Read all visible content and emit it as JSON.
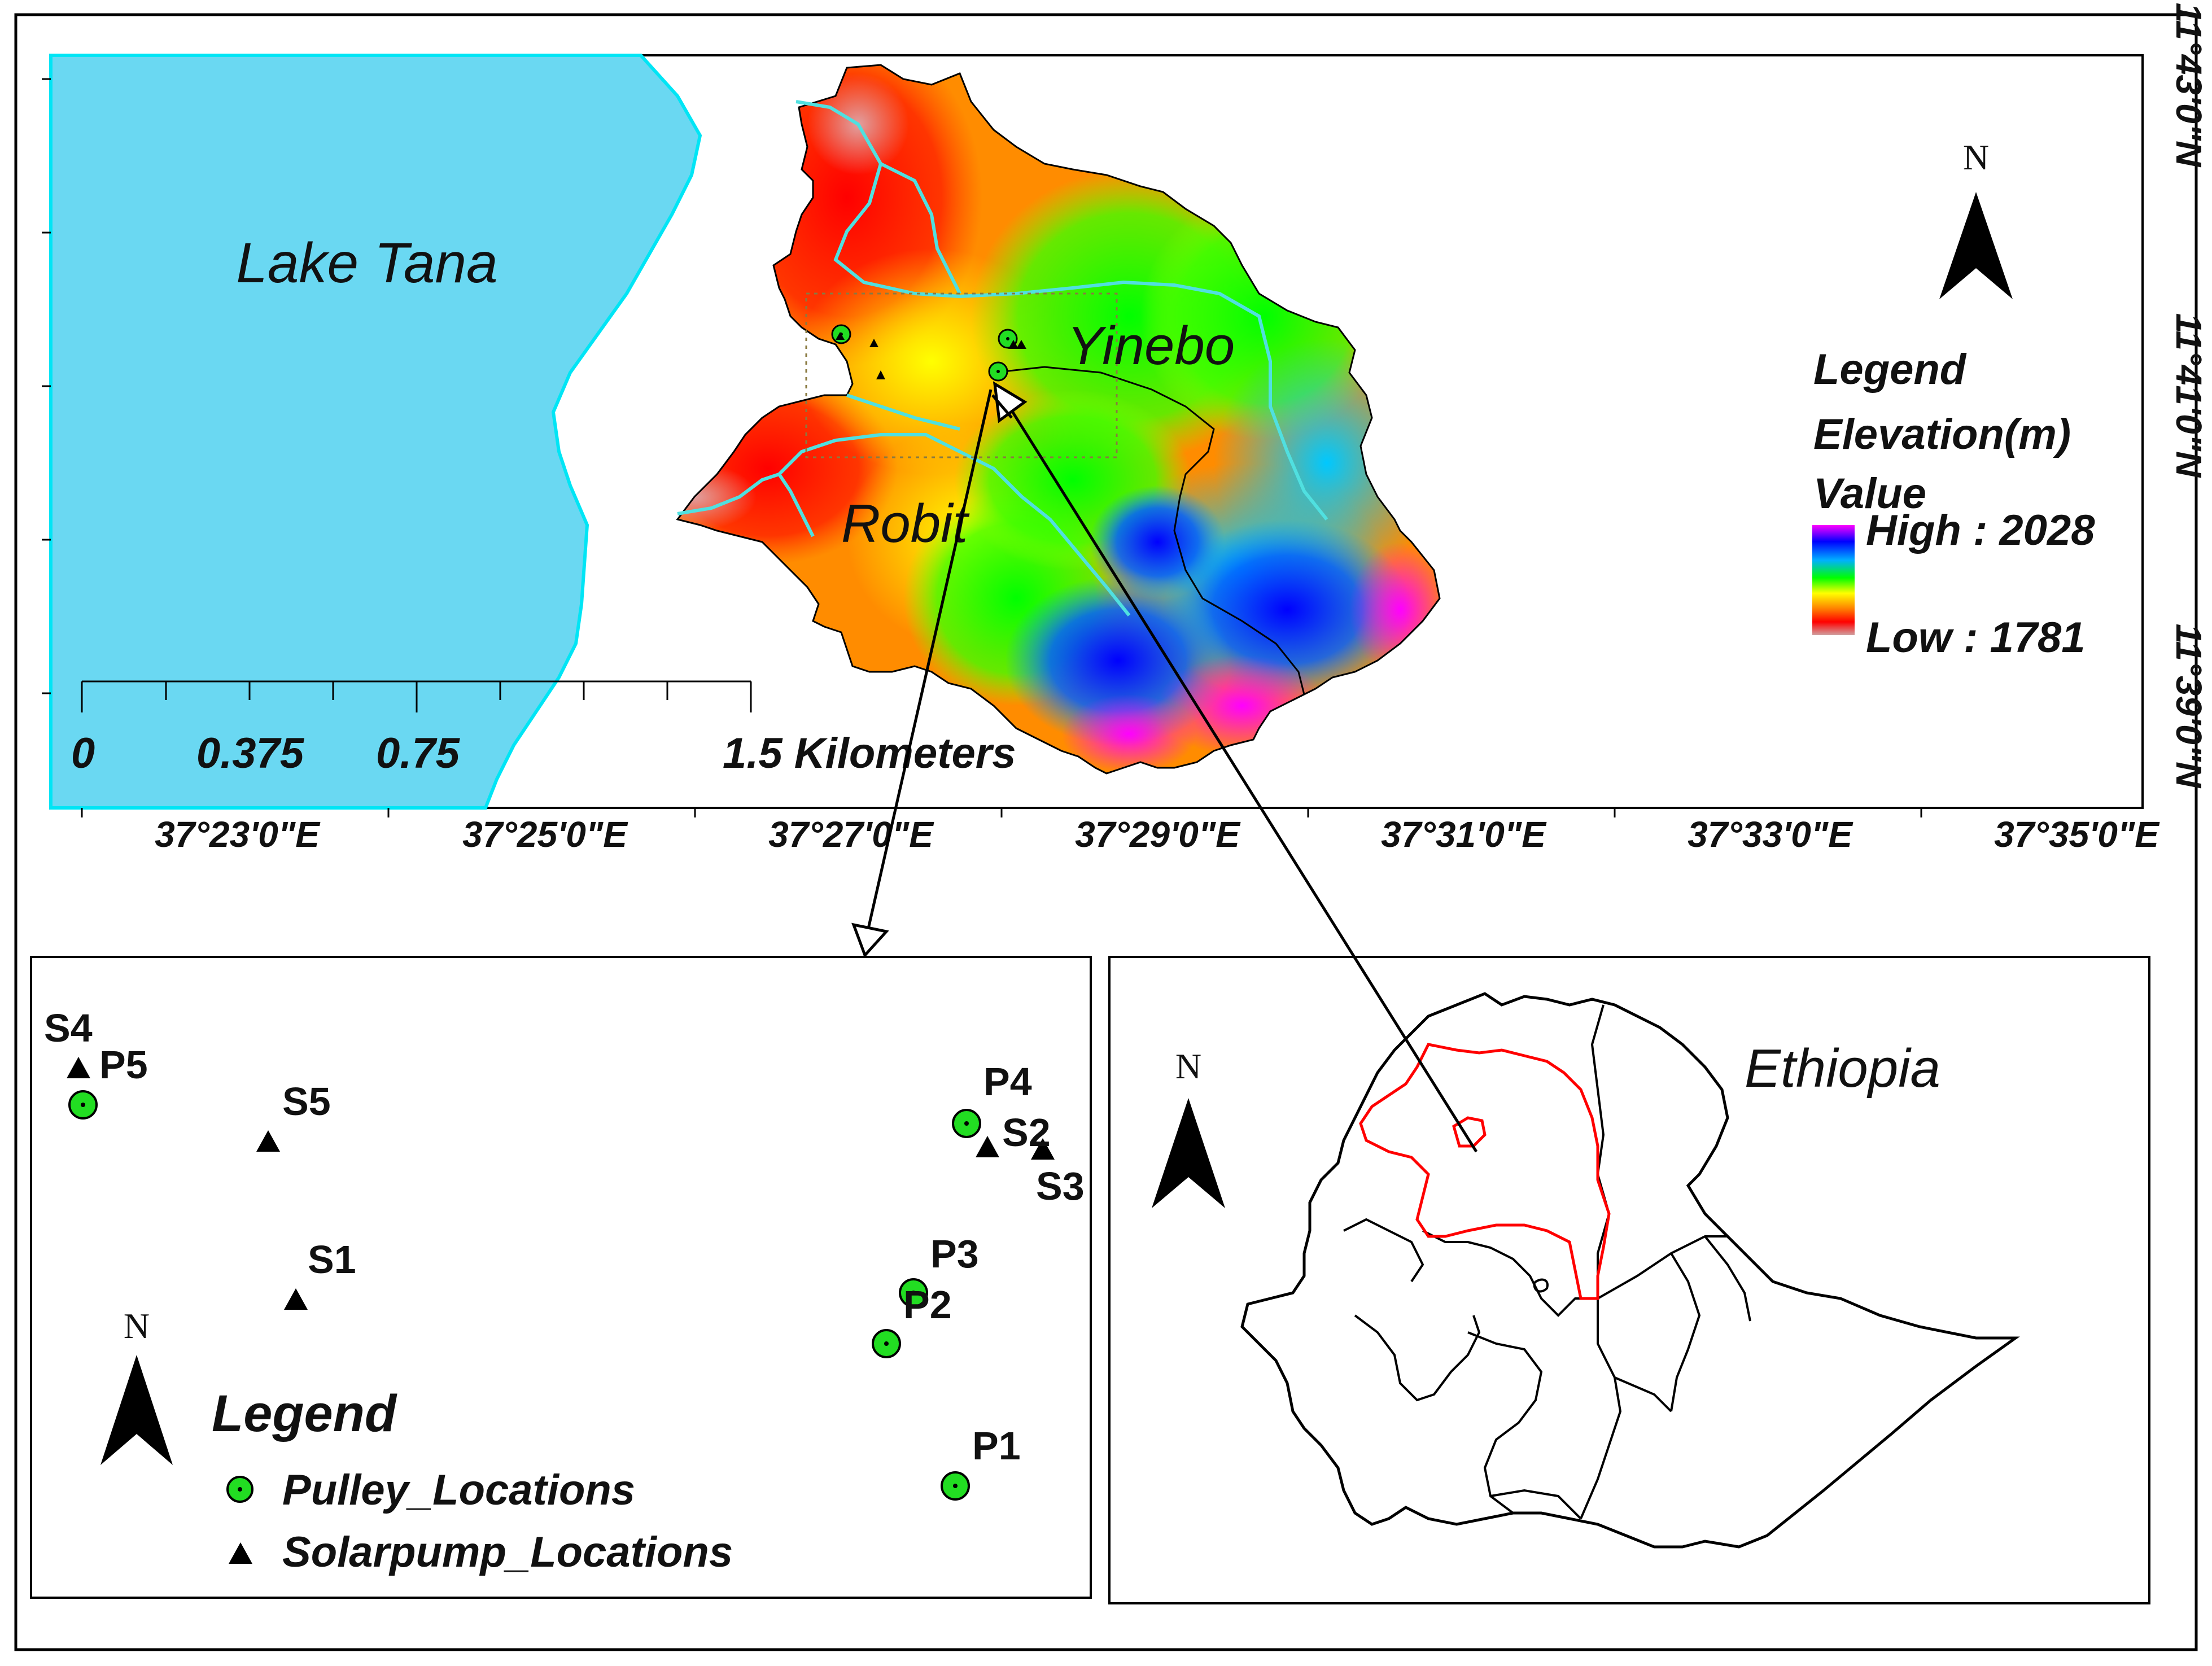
{
  "main_map": {
    "lake_label": "Lake Tana",
    "site_labels": [
      "Yinebo",
      "Robit"
    ],
    "north_label": "N",
    "lon_ticks": [
      "37°23'0\"E",
      "37°25'0\"E",
      "37°27'0\"E",
      "37°29'0\"E",
      "37°31'0\"E",
      "37°33'0\"E",
      "37°35'0\"E"
    ],
    "lat_ticks": [
      "11°43'0\"N",
      "11°41'0\"N",
      "11°39'0\"N"
    ],
    "scale_bar": {
      "labels": [
        "0",
        "0.375",
        "0.75",
        "1.5 Kilometers"
      ]
    },
    "legend": {
      "title": "Legend",
      "subtitle": "Elevation(m)",
      "field": "Value",
      "high_label": "High : 2028",
      "low_label": "Low : 1781",
      "high": 2028,
      "low": 1781,
      "ramp_colors": [
        "#ff00ff",
        "#0000ff",
        "#00b0ff",
        "#00ff00",
        "#ffff00",
        "#ff8000",
        "#ff0000",
        "#d0a0a0"
      ]
    },
    "colors": {
      "lake": "#6ad8f2",
      "lake_edge": "#00e5f5",
      "river": "#50e0e0"
    }
  },
  "inset_points": {
    "north_label": "N",
    "legend": {
      "title": "Legend",
      "pulley_label": "Pulley_Locations",
      "solar_label": "Solarpump_Locations"
    },
    "points": [
      {
        "label": "S4",
        "type": "solar"
      },
      {
        "label": "P5",
        "type": "pulley"
      },
      {
        "label": "S5",
        "type": "solar"
      },
      {
        "label": "S1",
        "type": "solar"
      },
      {
        "label": "P4",
        "type": "pulley"
      },
      {
        "label": "S2",
        "type": "solar"
      },
      {
        "label": "S3",
        "type": "solar"
      },
      {
        "label": "P3",
        "type": "pulley"
      },
      {
        "label": "P2",
        "type": "pulley"
      },
      {
        "label": "P1",
        "type": "pulley"
      }
    ],
    "colors": {
      "pulley": "#22dd22",
      "solar": "#000000"
    }
  },
  "inset_country": {
    "country_label": "Ethiopia",
    "north_label": "N",
    "colors": {
      "region_outline": "#ff0000",
      "country_outline": "#000000"
    }
  }
}
